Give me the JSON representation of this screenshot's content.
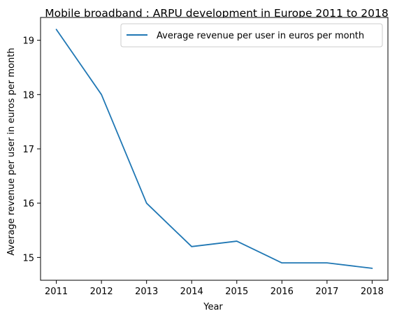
{
  "chart_data": {
    "type": "line",
    "title": "Mobile broadband : ARPU development in Europe 2011 to 2018",
    "xlabel": "Year",
    "ylabel": "Average revenue per user in euros per month",
    "x": [
      2011,
      2012,
      2013,
      2014,
      2015,
      2016,
      2017,
      2018
    ],
    "x_ticks": [
      "2011",
      "2012",
      "2013",
      "2014",
      "2015",
      "2016",
      "2017",
      "2018"
    ],
    "y_ticks": [
      "15",
      "16",
      "17",
      "18",
      "19"
    ],
    "y_tick_values": [
      15,
      16,
      17,
      18,
      19
    ],
    "ylim": [
      14.58,
      19.42
    ],
    "xlim": [
      2010.65,
      2018.35
    ],
    "series": [
      {
        "name": "Average revenue per user in euros per month",
        "color": "#1f77b4",
        "values": [
          19.2,
          18.0,
          16.0,
          15.2,
          15.3,
          14.9,
          14.9,
          14.8
        ]
      }
    ],
    "legend_position": "top-right",
    "grid": false
  }
}
